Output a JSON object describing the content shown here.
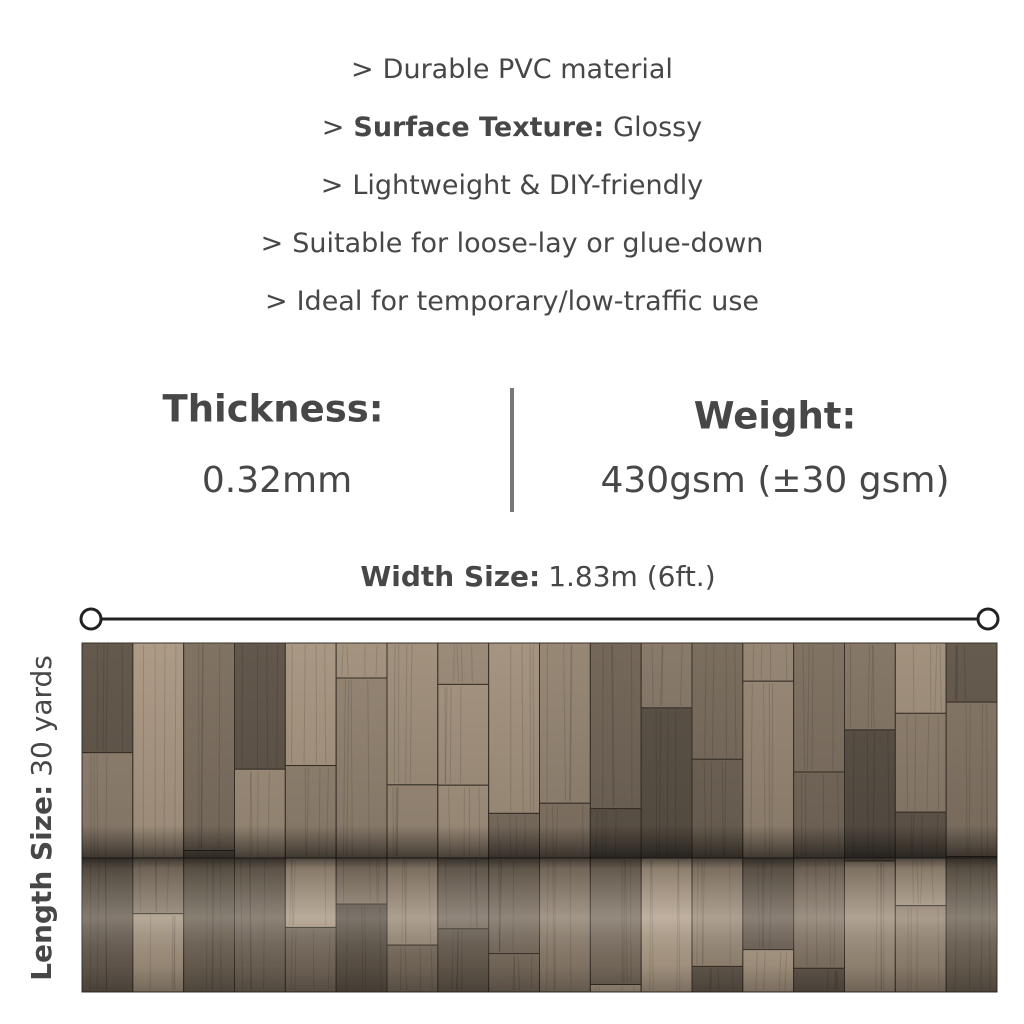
{
  "features": [
    {
      "prefix": ">",
      "text": "Durable PVC material"
    },
    {
      "prefix": ">",
      "label": "Surface Texture:",
      "text": "Glossy"
    },
    {
      "prefix": ">",
      "text": "Lightweight & DIY-friendly"
    },
    {
      "prefix": ">",
      "text": "Suitable for loose-lay or glue-down"
    },
    {
      "prefix": ">",
      "text": "Ideal for temporary/low-traffic use"
    }
  ],
  "specs": {
    "thickness": {
      "label": "Thickness:",
      "value": "0.32mm"
    },
    "weight": {
      "label": "Weight:",
      "value": "430gsm (±30 gsm)"
    }
  },
  "width": {
    "label": "Width Size:",
    "value": "1.83m (6ft.)"
  },
  "length": {
    "label": "Length Size:",
    "value": "30 yards"
  }
}
